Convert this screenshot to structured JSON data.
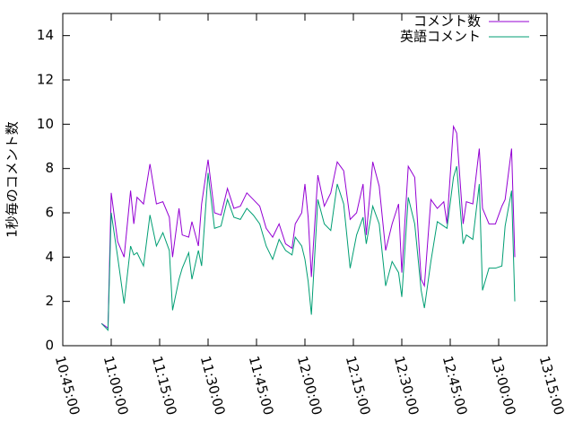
{
  "chart_data": {
    "type": "line",
    "y_label": "1秒毎のコメント数",
    "x": [
      "10:57:00",
      "10:59:00",
      "11:00:00",
      "11:02:00",
      "11:04:00",
      "11:06:00",
      "11:07:00",
      "11:08:00",
      "11:10:00",
      "11:12:00",
      "11:14:00",
      "11:16:00",
      "11:18:00",
      "11:19:00",
      "11:21:00",
      "11:22:00",
      "11:24:00",
      "11:25:00",
      "11:27:00",
      "11:28:00",
      "11:30:00",
      "11:32:00",
      "11:34:00",
      "11:36:00",
      "11:38:00",
      "11:40:00",
      "11:42:00",
      "11:44:00",
      "11:46:00",
      "11:48:00",
      "11:50:00",
      "11:52:00",
      "11:54:00",
      "11:56:00",
      "11:57:00",
      "11:59:00",
      "12:00:00",
      "12:01:00",
      "12:02:00",
      "12:04:00",
      "12:06:00",
      "12:08:00",
      "12:10:00",
      "12:12:00",
      "12:14:00",
      "12:16:00",
      "12:18:00",
      "12:19:00",
      "12:21:00",
      "12:23:00",
      "12:25:00",
      "12:27:00",
      "12:29:00",
      "12:30:00",
      "12:32:00",
      "12:34:00",
      "12:36:00",
      "12:37:00",
      "12:39:00",
      "12:41:00",
      "12:43:00",
      "12:44:00",
      "12:46:00",
      "12:47:00",
      "12:49:00",
      "12:50:00",
      "12:52:00",
      "12:54:00",
      "12:55:00",
      "12:57:00",
      "12:59:00",
      "13:01:00",
      "13:02:00",
      "13:04:00",
      "13:05:00"
    ],
    "series": [
      {
        "name": "コメント数",
        "color": "#9400d3",
        "values": [
          1.0,
          0.8,
          6.9,
          4.7,
          4.0,
          7.0,
          5.5,
          6.7,
          6.4,
          8.2,
          6.4,
          6.5,
          5.8,
          4.0,
          6.2,
          5.0,
          4.9,
          5.6,
          4.5,
          6.4,
          8.4,
          6.0,
          5.9,
          7.1,
          6.2,
          6.3,
          6.9,
          6.6,
          6.3,
          5.3,
          4.9,
          5.5,
          4.6,
          4.4,
          5.5,
          6.0,
          7.3,
          5.8,
          3.1,
          7.7,
          6.3,
          6.9,
          8.3,
          7.9,
          5.7,
          6.0,
          7.3,
          5.0,
          8.3,
          7.2,
          4.3,
          5.5,
          6.4,
          3.3,
          8.1,
          7.6,
          3.0,
          2.7,
          6.6,
          6.2,
          6.5,
          5.5,
          9.9,
          9.6,
          5.5,
          6.5,
          6.4,
          8.9,
          6.2,
          5.5,
          5.5,
          6.3,
          6.6,
          8.9,
          4.0
        ]
      },
      {
        "name": "英語コメント",
        "color": "#009e73",
        "values": [
          1.0,
          0.7,
          6.0,
          4.0,
          1.9,
          4.5,
          4.1,
          4.2,
          3.6,
          5.9,
          4.5,
          5.1,
          4.3,
          1.6,
          3.0,
          3.5,
          4.2,
          3.0,
          4.3,
          3.6,
          7.8,
          5.3,
          5.4,
          6.6,
          5.8,
          5.7,
          6.2,
          5.9,
          5.5,
          4.5,
          3.9,
          4.8,
          4.3,
          4.1,
          4.9,
          4.5,
          3.9,
          2.9,
          1.4,
          6.6,
          5.5,
          5.2,
          7.3,
          6.4,
          3.5,
          5.0,
          5.8,
          4.6,
          6.3,
          5.5,
          2.7,
          3.8,
          3.3,
          2.2,
          6.7,
          5.5,
          2.5,
          1.7,
          3.8,
          5.6,
          5.4,
          5.3,
          7.6,
          8.1,
          4.6,
          5.0,
          4.8,
          7.3,
          2.5,
          3.5,
          3.5,
          3.6,
          5.4,
          7.0,
          2.0
        ]
      }
    ],
    "xlim": [
      "10:45:00",
      "13:15:00"
    ],
    "xticks": [
      "10:45:00",
      "11:00:00",
      "11:15:00",
      "11:30:00",
      "11:45:00",
      "12:00:00",
      "12:15:00",
      "12:30:00",
      "12:45:00",
      "13:00:00",
      "13:15:00"
    ],
    "ylim": [
      0,
      15
    ],
    "yticks": [
      0,
      2,
      4,
      6,
      8,
      10,
      12,
      14
    ],
    "legend": "top-right"
  }
}
